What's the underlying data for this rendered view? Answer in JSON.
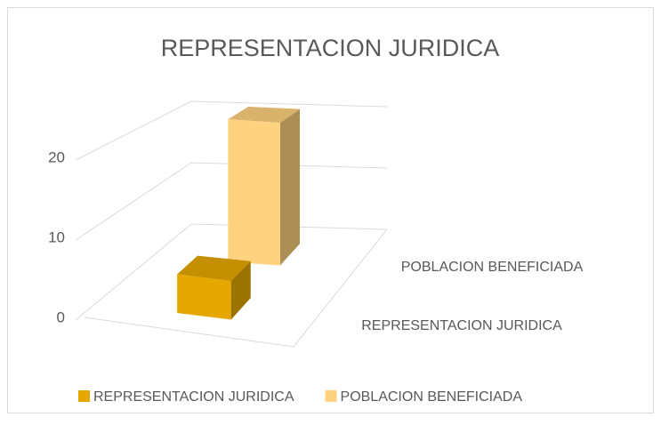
{
  "chart_data": {
    "type": "bar3d",
    "title": "REPRESENTACION JURIDICA",
    "series": [
      {
        "name": "REPRESENTACION JURIDICA",
        "color": "#e6a800",
        "values": [
          5
        ]
      },
      {
        "name": "POBLACION BENEFICIADA",
        "color": "#ffd27f",
        "values": [
          21
        ]
      }
    ],
    "ylim": [
      0,
      20
    ],
    "yticks": [
      0,
      10,
      20
    ],
    "grid": true
  }
}
